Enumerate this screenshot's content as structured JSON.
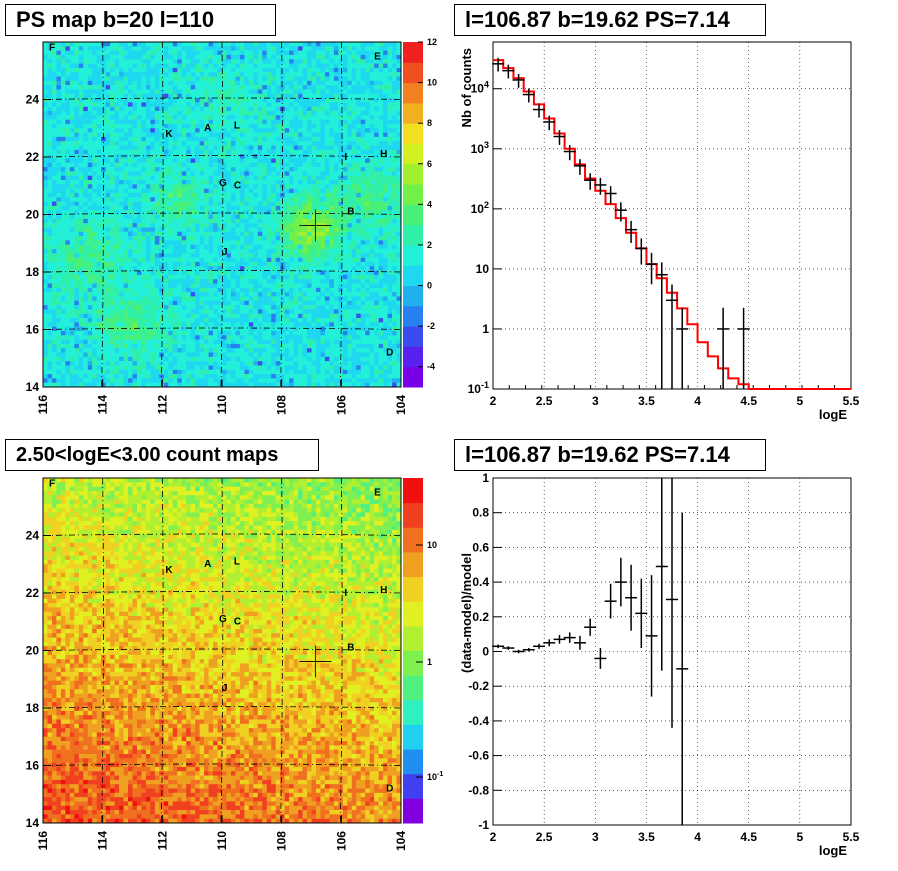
{
  "titles": {
    "map_top": "PS map b=20 l=110",
    "spectrum": "l=106.87 b=19.62 PS=7.14",
    "map_bottom": "2.50<logE<3.00 count maps",
    "residual": "l=106.87 b=19.62 PS=7.14"
  },
  "chart_data": [
    {
      "type": "heatmap",
      "title": "PS map b=20 l=110",
      "x_ticks": [
        "116",
        "114",
        "112",
        "110",
        "108",
        "106",
        "104"
      ],
      "y_ticks": [
        "14",
        "16",
        "18",
        "20",
        "22",
        "24"
      ],
      "xlim": [
        116,
        104
      ],
      "ylim": [
        14,
        26
      ],
      "colorbar_ticks": [
        "12",
        "10",
        "8",
        "6",
        "4",
        "2",
        "0",
        "-2",
        "-4"
      ],
      "colorbar_range": [
        -5,
        12
      ],
      "source_marker": {
        "l": 106.87,
        "b": 19.62
      },
      "labels": [
        {
          "text": "F",
          "l": 115.8,
          "b": 25.7
        },
        {
          "text": "E",
          "l": 104.9,
          "b": 25.4
        },
        {
          "text": "K",
          "l": 111.9,
          "b": 22.7
        },
        {
          "text": "A",
          "l": 110.6,
          "b": 22.9
        },
        {
          "text": "L",
          "l": 109.6,
          "b": 23.0
        },
        {
          "text": "I",
          "l": 105.9,
          "b": 21.9
        },
        {
          "text": "H",
          "l": 104.7,
          "b": 22.0
        },
        {
          "text": "G",
          "l": 110.1,
          "b": 21.0
        },
        {
          "text": "C",
          "l": 109.6,
          "b": 20.9
        },
        {
          "text": "B",
          "l": 105.8,
          "b": 20.0
        },
        {
          "text": "J",
          "l": 110.0,
          "b": 18.6
        },
        {
          "text": "D",
          "l": 104.5,
          "b": 15.1
        }
      ]
    },
    {
      "type": "line",
      "title": "l=106.87 b=19.62 PS=7.14",
      "xlabel": "logE",
      "ylabel": "Nb of counts",
      "xlim": [
        2,
        5.5
      ],
      "ylim": [
        0.1,
        60000
      ],
      "yscale": "log",
      "x_ticks": [
        "2",
        "2.5",
        "3",
        "3.5",
        "4",
        "4.5",
        "5",
        "5.5"
      ],
      "y_ticks": [
        "10^{-1}",
        "1",
        "10",
        "10^{2}",
        "10^{3}",
        "10^{4}"
      ],
      "grid": true,
      "series": [
        {
          "style": "points",
          "x": [
            2.05,
            2.15,
            2.25,
            2.35,
            2.45,
            2.55,
            2.65,
            2.75,
            2.85,
            2.95,
            3.05,
            3.15,
            3.25,
            3.35,
            3.45,
            3.55,
            3.65,
            3.75,
            3.85,
            4.25,
            4.45
          ],
          "y": [
            26000,
            20000,
            14000,
            8000,
            4500,
            2800,
            1600,
            900,
            520,
            300,
            250,
            180,
            95,
            45,
            22,
            12,
            8,
            3,
            1,
            1,
            1
          ],
          "yerr_lo": [
            1,
            1,
            1,
            1,
            1,
            1,
            1,
            1,
            1,
            1,
            1,
            1,
            1,
            1,
            1,
            1,
            0.6,
            0.5,
            0.9,
            0.9,
            0.9
          ]
        },
        {
          "style": "step",
          "color": "#ff0000",
          "x": [
            2.0,
            2.1,
            2.2,
            2.3,
            2.4,
            2.5,
            2.6,
            2.7,
            2.8,
            2.9,
            3.0,
            3.1,
            3.2,
            3.3,
            3.4,
            3.5,
            3.6,
            3.7,
            3.8,
            3.9,
            4.0,
            4.1,
            4.2,
            4.3,
            4.4,
            4.5,
            4.6,
            5.0,
            5.5
          ],
          "y": [
            30000,
            22000,
            15000,
            9000,
            5500,
            3200,
            1800,
            1000,
            550,
            320,
            200,
            120,
            70,
            40,
            22,
            12,
            7,
            4,
            2.2,
            1.2,
            0.6,
            0.35,
            0.22,
            0.15,
            0.12,
            0.1,
            0.1,
            0.1,
            0.1
          ]
        }
      ]
    },
    {
      "type": "heatmap",
      "title": "2.50<logE<3.00 count maps",
      "x_ticks": [
        "116",
        "114",
        "112",
        "110",
        "108",
        "106",
        "104"
      ],
      "y_ticks": [
        "14",
        "16",
        "18",
        "20",
        "22",
        "24"
      ],
      "xlim": [
        116,
        104
      ],
      "ylim": [
        14,
        26
      ],
      "colorbar_ticks": [
        "10",
        "1",
        "10^{-1}"
      ],
      "colorbar_scale": "log",
      "source_marker": {
        "l": 106.87,
        "b": 19.62
      }
    },
    {
      "type": "scatter",
      "title": "l=106.87 b=19.62 PS=7.14",
      "xlabel": "logE",
      "ylabel": "(data-model)/model",
      "xlim": [
        2,
        5.5
      ],
      "ylim": [
        -1,
        1
      ],
      "x_ticks": [
        "2",
        "2.5",
        "3",
        "3.5",
        "4",
        "4.5",
        "5",
        "5.5"
      ],
      "y_ticks": [
        "-1",
        "-0.8",
        "-0.6",
        "-0.4",
        "-0.2",
        "0",
        "0.2",
        "0.4",
        "0.6",
        "0.8",
        "1"
      ],
      "grid": true,
      "x": [
        2.05,
        2.15,
        2.25,
        2.35,
        2.45,
        2.55,
        2.65,
        2.75,
        2.85,
        2.95,
        3.05,
        3.15,
        3.25,
        3.35,
        3.45,
        3.55,
        3.65,
        3.75,
        3.85
      ],
      "y": [
        0.03,
        0.02,
        0.0,
        0.01,
        0.03,
        0.05,
        0.07,
        0.08,
        0.05,
        0.14,
        -0.04,
        0.29,
        0.4,
        0.31,
        0.22,
        0.09,
        0.49,
        0.3,
        -0.1
      ],
      "yerr": [
        0.01,
        0.01,
        0.01,
        0.01,
        0.015,
        0.02,
        0.025,
        0.03,
        0.04,
        0.05,
        0.06,
        0.1,
        0.14,
        0.19,
        0.2,
        0.35,
        0.6,
        0.74,
        0.9
      ]
    }
  ]
}
